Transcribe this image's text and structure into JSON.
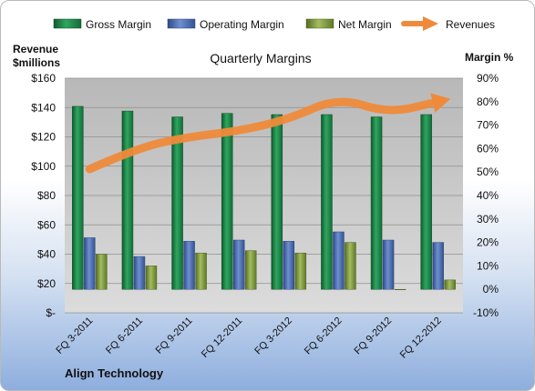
{
  "chart_data": {
    "type": "bar",
    "title": "Quarterly Margins",
    "footer": "Align Technology",
    "y_left_label_line1": "Revenue",
    "y_left_label_line2": "$millions",
    "y_right_label": "Margin %",
    "categories": [
      "FQ 3-2011",
      "FQ 6-2011",
      "FQ 9-2011",
      "FQ 12-2011",
      "FQ 3-2012",
      "FQ 6-2012",
      "FQ 9-2012",
      "FQ 12-2012"
    ],
    "y_left_ticks": [
      "$-",
      "$20",
      "$40",
      "$60",
      "$80",
      "$100",
      "$120",
      "$140",
      "$160"
    ],
    "y_left_range": [
      0,
      160
    ],
    "y_right_ticks": [
      "-10%",
      "0%",
      "10%",
      "20%",
      "30%",
      "40%",
      "50%",
      "60%",
      "70%",
      "80%",
      "90%"
    ],
    "y_right_range": [
      -10,
      90
    ],
    "legend_position": "top",
    "series": [
      {
        "name": "Gross Margin",
        "kind": "bar",
        "axis": "right",
        "color": "#1f8a4c",
        "values": [
          78,
          76,
          73.5,
          75,
          74.5,
          74.5,
          73.5,
          74.5
        ]
      },
      {
        "name": "Operating Margin",
        "kind": "bar",
        "axis": "right",
        "color": "#4f6faf",
        "values": [
          22,
          14,
          20.5,
          21,
          20.5,
          24.5,
          21,
          20
        ]
      },
      {
        "name": "Net Margin",
        "kind": "bar",
        "axis": "right",
        "color": "#7f9a3e",
        "values": [
          15,
          10,
          15.5,
          16.5,
          15.5,
          20,
          0,
          4
        ]
      },
      {
        "name": "Revenues",
        "kind": "line",
        "axis": "left",
        "color": "#ef8a3a",
        "values": [
          98,
          113,
          120,
          124,
          132,
          147,
          136,
          144
        ]
      }
    ]
  }
}
